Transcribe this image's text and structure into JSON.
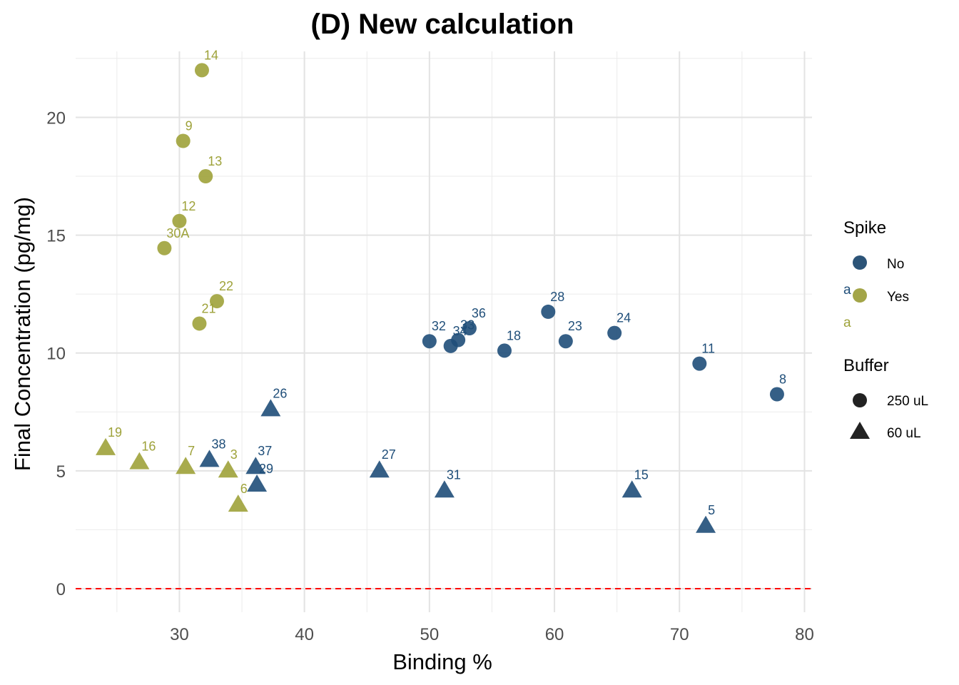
{
  "chart_data": {
    "type": "scatter",
    "title": "(D) New calculation",
    "xlabel": "Binding %",
    "ylabel": "Final Concentration (pg/mg)",
    "xlim": [
      21.7,
      80.6
    ],
    "ylim": [
      -1.0,
      22.8
    ],
    "x_ticks": [
      30,
      40,
      50,
      60,
      70,
      80
    ],
    "y_ticks": [
      0,
      5,
      10,
      15,
      20
    ],
    "x_tick_labels": [
      "30",
      "40",
      "50",
      "60",
      "70",
      "80"
    ],
    "y_tick_labels": [
      "0",
      "5",
      "10",
      "15",
      "20"
    ],
    "reference_line": {
      "y": 0,
      "color": "#ff0000",
      "style": "dashed"
    },
    "colors": {
      "No": "#1f4e79",
      "Yes": "#9ea23a"
    },
    "legend": {
      "position": "right",
      "spike": {
        "title": "Spike",
        "entries": [
          "No",
          "Yes"
        ],
        "key_glyph": "a"
      },
      "buffer": {
        "title": "Buffer",
        "entries": [
          "250 uL",
          "60 uL"
        ]
      }
    },
    "series": [
      {
        "name": "Spike Yes / 250 uL",
        "spike": "Yes",
        "buffer": "250 uL",
        "shape": "circle",
        "points": [
          {
            "label": "14",
            "x": 31.8,
            "y": 22.0
          },
          {
            "label": "9",
            "x": 30.3,
            "y": 19.0
          },
          {
            "label": "13",
            "x": 32.1,
            "y": 17.5
          },
          {
            "label": "12",
            "x": 30.0,
            "y": 15.6
          },
          {
            "label": "30A",
            "x": 28.8,
            "y": 14.45
          },
          {
            "label": "22",
            "x": 33.0,
            "y": 12.2
          },
          {
            "label": "21",
            "x": 31.6,
            "y": 11.25
          }
        ]
      },
      {
        "name": "Spike Yes / 60 uL",
        "spike": "Yes",
        "buffer": "60 uL",
        "shape": "triangle",
        "points": [
          {
            "label": "19",
            "x": 24.1,
            "y": 6.0
          },
          {
            "label": "16",
            "x": 26.8,
            "y": 5.4
          },
          {
            "label": "7",
            "x": 30.5,
            "y": 5.2
          },
          {
            "label": "3",
            "x": 33.9,
            "y": 5.05
          },
          {
            "label": "6",
            "x": 34.7,
            "y": 3.6
          }
        ]
      },
      {
        "name": "Spike No / 250 uL",
        "spike": "No",
        "buffer": "250 uL",
        "shape": "circle",
        "points": [
          {
            "label": "32",
            "x": 50.0,
            "y": 10.5
          },
          {
            "label": "34",
            "x": 51.7,
            "y": 10.3
          },
          {
            "label": "33",
            "x": 52.3,
            "y": 10.55
          },
          {
            "label": "36",
            "x": 53.2,
            "y": 11.05
          },
          {
            "label": "18",
            "x": 56.0,
            "y": 10.1
          },
          {
            "label": "28",
            "x": 59.5,
            "y": 11.75
          },
          {
            "label": "23",
            "x": 60.9,
            "y": 10.5
          },
          {
            "label": "24",
            "x": 64.8,
            "y": 10.85
          },
          {
            "label": "11",
            "x": 71.6,
            "y": 9.55
          },
          {
            "label": "8",
            "x": 77.8,
            "y": 8.25
          }
        ]
      },
      {
        "name": "Spike No / 60 uL",
        "spike": "No",
        "buffer": "60 uL",
        "shape": "triangle",
        "points": [
          {
            "label": "26",
            "x": 37.3,
            "y": 7.65
          },
          {
            "label": "38",
            "x": 32.4,
            "y": 5.5
          },
          {
            "label": "37",
            "x": 36.1,
            "y": 5.2
          },
          {
            "label": "29",
            "x": 36.2,
            "y": 4.45
          },
          {
            "label": "27",
            "x": 46.0,
            "y": 5.05
          },
          {
            "label": "31",
            "x": 51.2,
            "y": 4.2
          },
          {
            "label": "15",
            "x": 66.2,
            "y": 4.2
          },
          {
            "label": "5",
            "x": 72.1,
            "y": 2.7
          }
        ]
      }
    ]
  }
}
